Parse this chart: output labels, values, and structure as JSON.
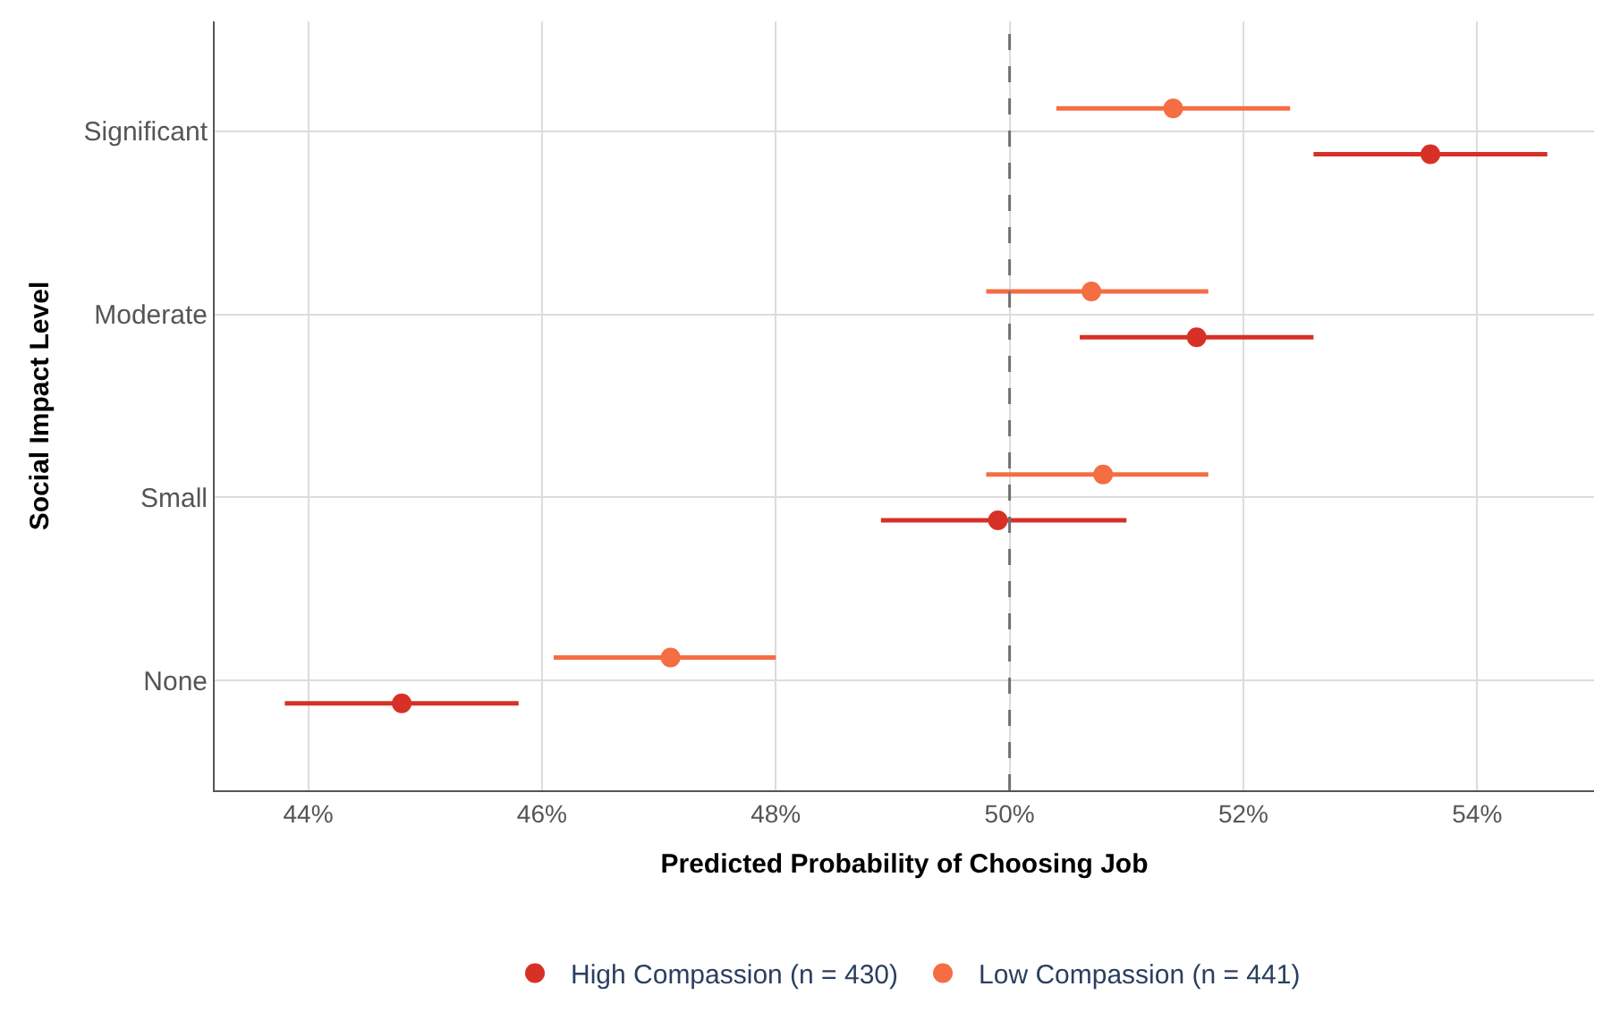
{
  "chart_data": {
    "type": "scatter",
    "orientation": "horizontal",
    "xlabel": "Predicted Probability of Choosing Job",
    "ylabel": "Social Impact Level",
    "categories": [
      "Significant",
      "Moderate",
      "Small",
      "None"
    ],
    "series": [
      {
        "name": "High Compassion (n = 430)",
        "color": "#d73027",
        "values": [
          53.6,
          51.6,
          49.9,
          44.8
        ],
        "errors": [
          [
            52.6,
            54.6
          ],
          [
            50.6,
            52.6
          ],
          [
            48.9,
            51.0
          ],
          [
            43.8,
            45.8
          ]
        ]
      },
      {
        "name": "Low Compassion (n = 441)",
        "color": "#f46d43",
        "values": [
          51.4,
          50.7,
          50.8,
          47.1
        ],
        "errors": [
          [
            50.4,
            52.4
          ],
          [
            49.8,
            51.7
          ],
          [
            49.8,
            51.7
          ],
          [
            46.1,
            48.0
          ]
        ]
      }
    ],
    "xlim": [
      43.2,
      55.0
    ],
    "xticks": [
      {
        "value": 44,
        "label": "44%"
      },
      {
        "value": 46,
        "label": "46%"
      },
      {
        "value": 48,
        "label": "48%"
      },
      {
        "value": 50,
        "label": "50%"
      },
      {
        "value": 52,
        "label": "52%"
      },
      {
        "value": 54,
        "label": "54%"
      }
    ],
    "ref_lines": [
      {
        "axis": "x",
        "value": 50,
        "color": "#707070",
        "line_style": "dashed"
      }
    ],
    "grid": true,
    "legend": "bottom",
    "marker": "circle"
  }
}
